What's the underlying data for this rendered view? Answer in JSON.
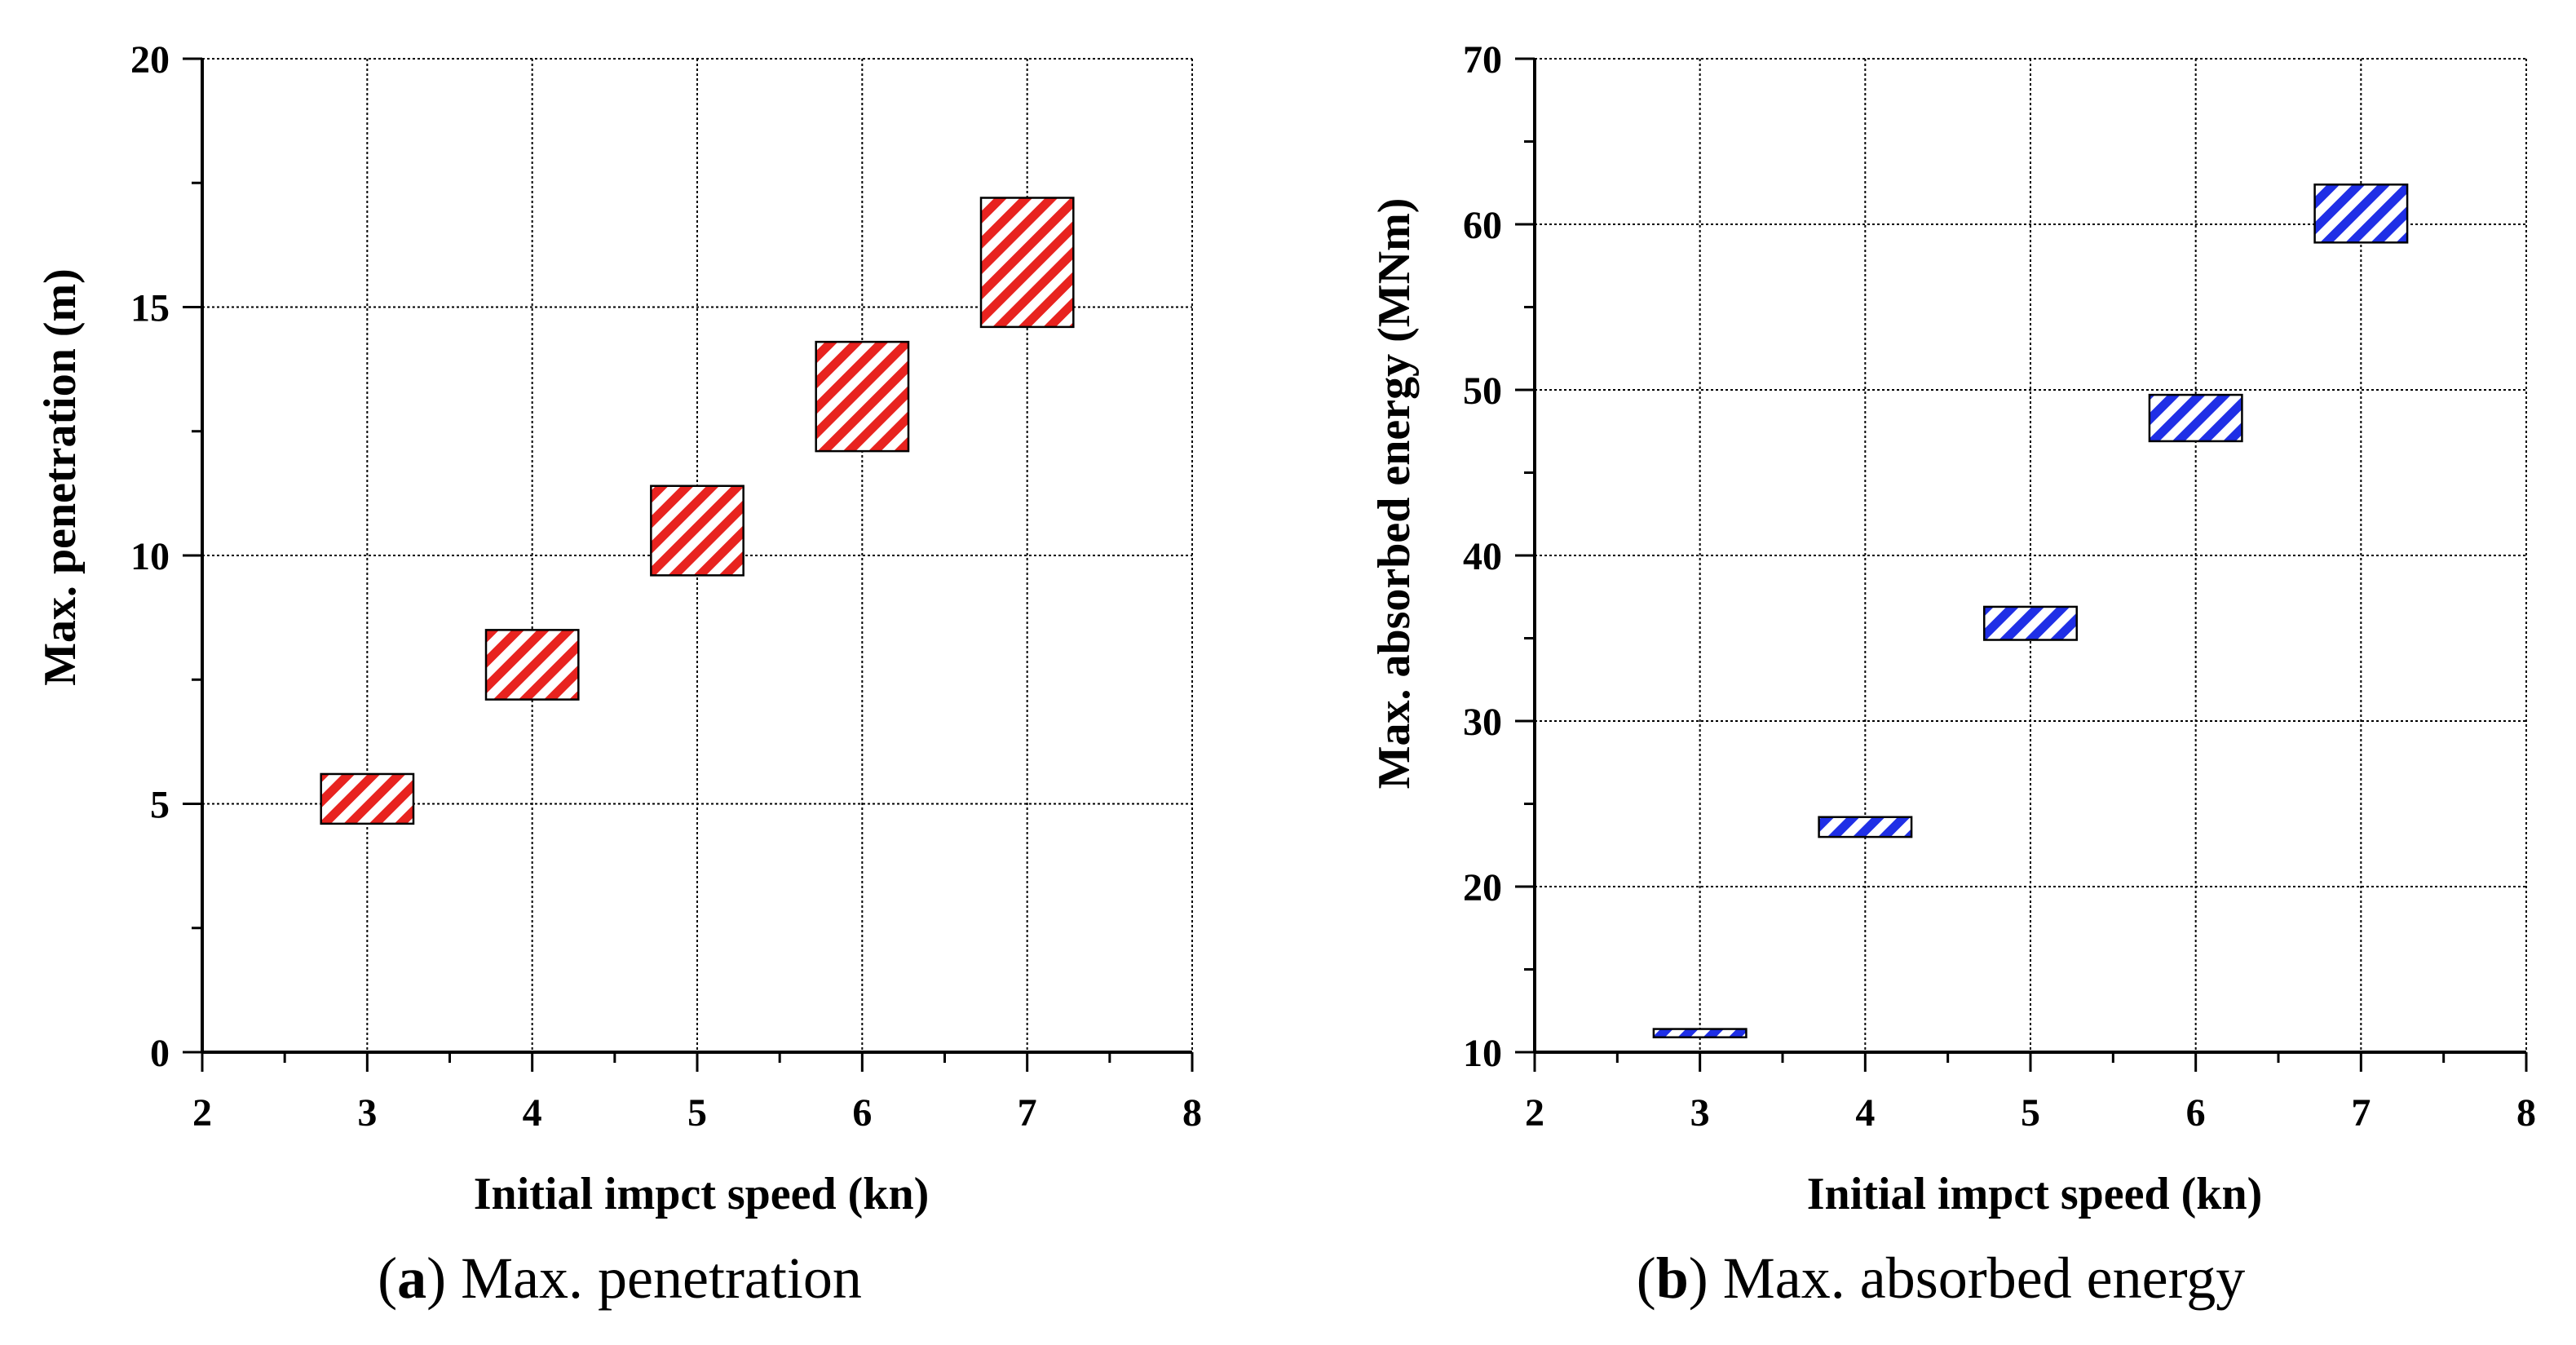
{
  "chart_data": [
    {
      "type": "floating-bar",
      "id": "a",
      "title": "",
      "xlabel": "Initial impct speed (kn)",
      "ylabel": "Max. penetration (m)",
      "xlim": [
        2,
        8
      ],
      "ylim": [
        0,
        20
      ],
      "xticks": [
        2,
        3,
        4,
        5,
        6,
        7,
        8
      ],
      "yticks": [
        0,
        5,
        10,
        15,
        20
      ],
      "grid": true,
      "bar_half_width": 0.28,
      "color": "#e8231f",
      "pattern": "diagonal-hatch",
      "series": [
        {
          "x": 3,
          "low": 4.6,
          "high": 5.6
        },
        {
          "x": 4,
          "low": 7.1,
          "high": 8.5
        },
        {
          "x": 5,
          "low": 9.6,
          "high": 11.4
        },
        {
          "x": 6,
          "low": 12.1,
          "high": 14.3
        },
        {
          "x": 7,
          "low": 14.6,
          "high": 17.2
        }
      ],
      "caption": {
        "letter": "a",
        "text": " Max. penetration"
      }
    },
    {
      "type": "floating-bar",
      "id": "b",
      "title": "",
      "xlabel": "Initial impct speed (kn)",
      "ylabel": "Max. absorbed energy (MNm)",
      "xlim": [
        2,
        8
      ],
      "ylim": [
        10,
        70
      ],
      "xticks": [
        2,
        3,
        4,
        5,
        6,
        7,
        8
      ],
      "yticks": [
        10,
        20,
        30,
        40,
        50,
        60,
        70
      ],
      "grid": true,
      "bar_half_width": 0.28,
      "color": "#1f2fe6",
      "pattern": "diagonal-hatch",
      "series": [
        {
          "x": 3,
          "low": 10.9,
          "high": 11.4
        },
        {
          "x": 4,
          "low": 23.0,
          "high": 24.2
        },
        {
          "x": 5,
          "low": 34.9,
          "high": 36.9
        },
        {
          "x": 6,
          "low": 46.9,
          "high": 49.7
        },
        {
          "x": 7,
          "low": 58.9,
          "high": 62.4
        }
      ],
      "caption": {
        "letter": "b",
        "text": " Max. absorbed energy"
      }
    }
  ]
}
